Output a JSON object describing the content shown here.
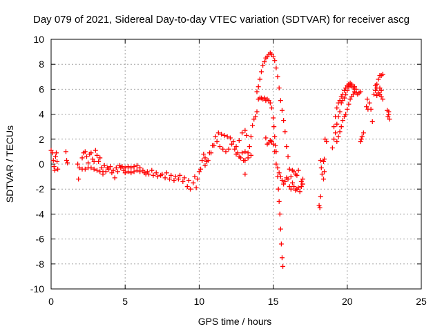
{
  "chart_data": {
    "type": "scatter",
    "title": "Day 079 of 2021, Sidereal Day-to-day VTEC variation (SDTVAR) for receiver ascg",
    "xlabel": "GPS time / hours",
    "ylabel": "SDTVAR / TECUs",
    "xlim": [
      0,
      25
    ],
    "ylim": [
      -10,
      10
    ],
    "xticks": [
      0,
      5,
      10,
      15,
      20,
      25
    ],
    "yticks": [
      -10,
      -8,
      -6,
      -4,
      -2,
      0,
      2,
      4,
      6,
      8,
      10
    ],
    "grid": true,
    "marker": "+",
    "color": "#ff0000",
    "series": [
      {
        "name": "SDTVAR",
        "points": [
          [
            0.0,
            1.1
          ],
          [
            0.1,
            0.9
          ],
          [
            0.15,
            0.3
          ],
          [
            0.2,
            -0.2
          ],
          [
            0.25,
            -0.5
          ],
          [
            0.3,
            0.6
          ],
          [
            0.35,
            0.9
          ],
          [
            0.4,
            0.2
          ],
          [
            0.45,
            -0.4
          ],
          [
            1.0,
            1.0
          ],
          [
            1.05,
            0.3
          ],
          [
            1.1,
            0.1
          ],
          [
            1.8,
            0.0
          ],
          [
            1.85,
            -1.2
          ],
          [
            1.9,
            -0.3
          ],
          [
            2.1,
            0.5
          ],
          [
            2.2,
            0.9
          ],
          [
            2.3,
            1.0
          ],
          [
            2.4,
            0.6
          ],
          [
            2.5,
            0.1
          ],
          [
            2.6,
            0.8
          ],
          [
            2.7,
            0.9
          ],
          [
            2.8,
            0.4
          ],
          [
            2.9,
            0.2
          ],
          [
            3.0,
            1.1
          ],
          [
            3.1,
            0.7
          ],
          [
            3.2,
            0.2
          ],
          [
            3.3,
            0.5
          ],
          [
            3.4,
            -0.3
          ],
          [
            3.5,
            -0.6
          ],
          [
            2.1,
            -0.4
          ],
          [
            2.3,
            -0.4
          ],
          [
            2.5,
            -0.3
          ],
          [
            2.7,
            -0.3
          ],
          [
            2.9,
            -0.4
          ],
          [
            3.1,
            -0.5
          ],
          [
            3.3,
            -0.6
          ],
          [
            3.5,
            -0.8
          ],
          [
            3.7,
            -0.6
          ],
          [
            3.9,
            -0.4
          ],
          [
            4.1,
            -0.7
          ],
          [
            4.3,
            -1.1
          ],
          [
            4.5,
            -0.6
          ],
          [
            4.7,
            -0.3
          ],
          [
            4.9,
            -0.5
          ],
          [
            3.6,
            -0.1
          ],
          [
            3.8,
            -0.3
          ],
          [
            4.0,
            -0.2
          ],
          [
            4.2,
            -0.5
          ],
          [
            4.4,
            -0.3
          ],
          [
            4.6,
            -0.1
          ],
          [
            4.8,
            -0.2
          ],
          [
            5.0,
            -0.3
          ],
          [
            5.2,
            -0.2
          ],
          [
            5.4,
            -0.3
          ],
          [
            5.6,
            -0.2
          ],
          [
            5.8,
            -0.1
          ],
          [
            6.0,
            -0.3
          ],
          [
            6.2,
            -0.5
          ],
          [
            6.4,
            -0.8
          ],
          [
            5.0,
            -0.7
          ],
          [
            5.2,
            -0.6
          ],
          [
            5.4,
            -0.7
          ],
          [
            5.6,
            -0.6
          ],
          [
            5.8,
            -0.5
          ],
          [
            6.0,
            -0.6
          ],
          [
            6.3,
            -0.7
          ],
          [
            6.6,
            -0.8
          ],
          [
            6.9,
            -0.9
          ],
          [
            7.2,
            -1.0
          ],
          [
            7.5,
            -0.8
          ],
          [
            7.8,
            -0.7
          ],
          [
            8.1,
            -0.9
          ],
          [
            8.4,
            -1.0
          ],
          [
            8.7,
            -0.9
          ],
          [
            9.0,
            -1.1
          ],
          [
            9.3,
            -1.3
          ],
          [
            6.5,
            -0.6
          ],
          [
            6.8,
            -0.5
          ],
          [
            7.1,
            -0.7
          ],
          [
            7.4,
            -0.9
          ],
          [
            7.7,
            -1.1
          ],
          [
            8.0,
            -1.2
          ],
          [
            8.3,
            -1.3
          ],
          [
            8.6,
            -1.2
          ],
          [
            8.9,
            -1.4
          ],
          [
            9.2,
            -1.8
          ],
          [
            9.4,
            -2.0
          ],
          [
            9.6,
            -1.5
          ],
          [
            9.7,
            -1.0
          ],
          [
            9.8,
            -1.9
          ],
          [
            9.9,
            -1.2
          ],
          [
            10.0,
            -0.6
          ],
          [
            10.1,
            -0.4
          ],
          [
            10.2,
            0.3
          ],
          [
            10.3,
            0.8
          ],
          [
            10.4,
            0.5
          ],
          [
            10.5,
            0.2
          ],
          [
            10.7,
            0.9
          ],
          [
            10.9,
            1.5
          ],
          [
            11.1,
            2.2
          ],
          [
            11.3,
            2.5
          ],
          [
            11.5,
            2.4
          ],
          [
            11.7,
            2.3
          ],
          [
            11.9,
            2.2
          ],
          [
            12.1,
            2.1
          ],
          [
            12.3,
            1.8
          ],
          [
            12.5,
            1.4
          ],
          [
            12.7,
            1.9
          ],
          [
            12.9,
            2.5
          ],
          [
            13.1,
            2.7
          ],
          [
            13.2,
            2.3
          ],
          [
            10.4,
            -0.1
          ],
          [
            10.6,
            0.3
          ],
          [
            10.8,
            0.9
          ],
          [
            11.0,
            1.5
          ],
          [
            11.2,
            1.8
          ],
          [
            11.4,
            1.4
          ],
          [
            11.6,
            1.2
          ],
          [
            11.8,
            1.0
          ],
          [
            12.0,
            1.2
          ],
          [
            12.2,
            1.6
          ],
          [
            12.4,
            1.2
          ],
          [
            12.6,
            0.9
          ],
          [
            12.8,
            0.5
          ],
          [
            13.0,
            0.3
          ],
          [
            13.1,
            -0.8
          ],
          [
            12.5,
            0.8
          ],
          [
            12.7,
            0.6
          ],
          [
            12.9,
            0.9
          ],
          [
            13.1,
            1.0
          ],
          [
            13.3,
            0.9
          ],
          [
            13.5,
            0.7
          ],
          [
            13.1,
            0.3
          ],
          [
            13.3,
            0.5
          ],
          [
            13.4,
            1.4
          ],
          [
            13.5,
            2.2
          ],
          [
            13.6,
            3.1
          ],
          [
            13.7,
            3.6
          ],
          [
            13.8,
            3.8
          ],
          [
            13.9,
            4.2
          ],
          [
            14.0,
            5.2
          ],
          [
            14.1,
            5.3
          ],
          [
            14.2,
            5.3
          ],
          [
            14.3,
            5.2
          ],
          [
            14.4,
            5.3
          ],
          [
            14.5,
            5.1
          ],
          [
            14.6,
            5.2
          ],
          [
            14.7,
            5.1
          ],
          [
            14.8,
            4.9
          ],
          [
            14.9,
            4.5
          ],
          [
            15.0,
            3.7
          ],
          [
            15.05,
            3.0
          ],
          [
            15.1,
            2.2
          ],
          [
            15.15,
            1.5
          ],
          [
            15.2,
            1.0
          ],
          [
            13.9,
            5.8
          ],
          [
            14.0,
            6.2
          ],
          [
            14.1,
            6.8
          ],
          [
            14.2,
            7.4
          ],
          [
            14.3,
            7.9
          ],
          [
            14.4,
            8.2
          ],
          [
            14.5,
            8.5
          ],
          [
            14.6,
            8.6
          ],
          [
            14.7,
            8.8
          ],
          [
            14.8,
            8.9
          ],
          [
            14.9,
            8.8
          ],
          [
            15.0,
            8.6
          ],
          [
            15.1,
            8.3
          ],
          [
            15.2,
            7.7
          ],
          [
            15.3,
            7.0
          ],
          [
            15.4,
            6.1
          ],
          [
            15.5,
            5.1
          ],
          [
            15.6,
            4.3
          ],
          [
            15.7,
            3.5
          ],
          [
            15.8,
            2.6
          ],
          [
            15.9,
            1.4
          ],
          [
            16.0,
            0.6
          ],
          [
            16.1,
            -0.4
          ],
          [
            16.2,
            -1.0
          ],
          [
            16.3,
            -1.5
          ],
          [
            16.4,
            -1.8
          ],
          [
            16.5,
            -2.1
          ],
          [
            16.6,
            -2.0
          ],
          [
            16.7,
            -1.9
          ],
          [
            16.8,
            -2.2
          ],
          [
            16.9,
            -1.8
          ],
          [
            17.0,
            -1.2
          ],
          [
            14.5,
            2.1
          ],
          [
            14.6,
            1.6
          ],
          [
            14.7,
            1.7
          ],
          [
            14.8,
            1.9
          ],
          [
            14.9,
            1.8
          ],
          [
            15.0,
            1.6
          ],
          [
            15.1,
            1.0
          ],
          [
            15.2,
            0.0
          ],
          [
            15.3,
            -1.0
          ],
          [
            15.35,
            -2.0
          ],
          [
            15.4,
            -3.0
          ],
          [
            15.45,
            -4.0
          ],
          [
            15.5,
            -5.2
          ],
          [
            15.55,
            -6.4
          ],
          [
            15.6,
            -7.5
          ],
          [
            15.65,
            -8.2
          ],
          [
            15.3,
            -0.3
          ],
          [
            15.4,
            -0.7
          ],
          [
            15.5,
            -1.0
          ],
          [
            15.6,
            -1.3
          ],
          [
            15.7,
            -1.6
          ],
          [
            15.8,
            -1.4
          ],
          [
            15.9,
            -1.1
          ],
          [
            16.0,
            -1.2
          ],
          [
            16.1,
            -1.8
          ],
          [
            16.2,
            -2.0
          ],
          [
            16.3,
            -0.5
          ],
          [
            16.4,
            -0.6
          ],
          [
            16.5,
            -0.8
          ],
          [
            16.6,
            -0.9
          ],
          [
            16.7,
            -0.5
          ],
          [
            16.9,
            -1.4
          ],
          [
            17.0,
            -1.6
          ],
          [
            18.1,
            -3.3
          ],
          [
            18.2,
            -2.6
          ],
          [
            18.15,
            -3.5
          ],
          [
            18.2,
            0.3
          ],
          [
            18.25,
            -0.3
          ],
          [
            18.3,
            -0.8
          ],
          [
            18.4,
            -1.2
          ],
          [
            18.45,
            -0.6
          ],
          [
            18.5,
            2.0
          ],
          [
            18.6,
            1.8
          ],
          [
            18.45,
            0.4
          ],
          [
            18.4,
            0.2
          ],
          [
            19.0,
            1.3
          ],
          [
            19.1,
            2.0
          ],
          [
            19.2,
            2.5
          ],
          [
            19.3,
            3.2
          ],
          [
            19.4,
            3.8
          ],
          [
            19.5,
            4.2
          ],
          [
            19.6,
            4.9
          ],
          [
            19.7,
            5.1
          ],
          [
            19.8,
            5.3
          ],
          [
            19.9,
            5.6
          ],
          [
            20.0,
            5.9
          ],
          [
            20.1,
            6.2
          ],
          [
            20.2,
            6.3
          ],
          [
            20.3,
            6.3
          ],
          [
            20.4,
            6.1
          ],
          [
            20.5,
            6.2
          ],
          [
            20.6,
            6.0
          ],
          [
            19.1,
            3.0
          ],
          [
            19.2,
            3.8
          ],
          [
            19.3,
            4.5
          ],
          [
            19.4,
            4.9
          ],
          [
            19.5,
            5.1
          ],
          [
            19.6,
            5.4
          ],
          [
            19.7,
            5.6
          ],
          [
            19.8,
            5.9
          ],
          [
            19.9,
            6.1
          ],
          [
            20.0,
            6.3
          ],
          [
            20.1,
            6.4
          ],
          [
            20.2,
            6.5
          ],
          [
            20.3,
            6.4
          ],
          [
            19.3,
            1.8
          ],
          [
            19.4,
            2.2
          ],
          [
            19.5,
            2.6
          ],
          [
            19.6,
            3.0
          ],
          [
            19.7,
            3.5
          ],
          [
            19.8,
            3.8
          ],
          [
            19.9,
            4.0
          ],
          [
            20.0,
            4.4
          ],
          [
            20.1,
            4.8
          ],
          [
            20.2,
            5.2
          ],
          [
            20.3,
            5.4
          ],
          [
            20.4,
            5.6
          ],
          [
            20.5,
            5.8
          ],
          [
            20.6,
            5.7
          ],
          [
            20.7,
            5.6
          ],
          [
            20.8,
            5.7
          ],
          [
            20.9,
            5.8
          ],
          [
            20.9,
            1.8
          ],
          [
            21.0,
            2.2
          ],
          [
            21.1,
            2.5
          ],
          [
            20.95,
            2.0
          ],
          [
            21.3,
            4.6
          ],
          [
            21.35,
            5.2
          ],
          [
            21.4,
            4.4
          ],
          [
            21.5,
            4.9
          ],
          [
            21.6,
            4.4
          ],
          [
            21.7,
            3.4
          ],
          [
            21.8,
            5.6
          ],
          [
            21.9,
            5.9
          ],
          [
            22.0,
            6.1
          ],
          [
            21.9,
            6.3
          ],
          [
            22.0,
            6.4
          ],
          [
            22.1,
            6.8
          ],
          [
            22.2,
            7.1
          ],
          [
            22.3,
            7.1
          ],
          [
            22.4,
            7.2
          ],
          [
            22.1,
            5.7
          ],
          [
            22.2,
            5.6
          ],
          [
            22.3,
            5.4
          ],
          [
            22.4,
            5.2
          ],
          [
            22.2,
            6.1
          ],
          [
            22.3,
            5.9
          ],
          [
            22.0,
            5.5
          ],
          [
            22.7,
            4.3
          ],
          [
            22.8,
            4.0
          ],
          [
            22.75,
            3.8
          ],
          [
            22.85,
            3.6
          ],
          [
            22.8,
            4.2
          ]
        ]
      }
    ]
  }
}
